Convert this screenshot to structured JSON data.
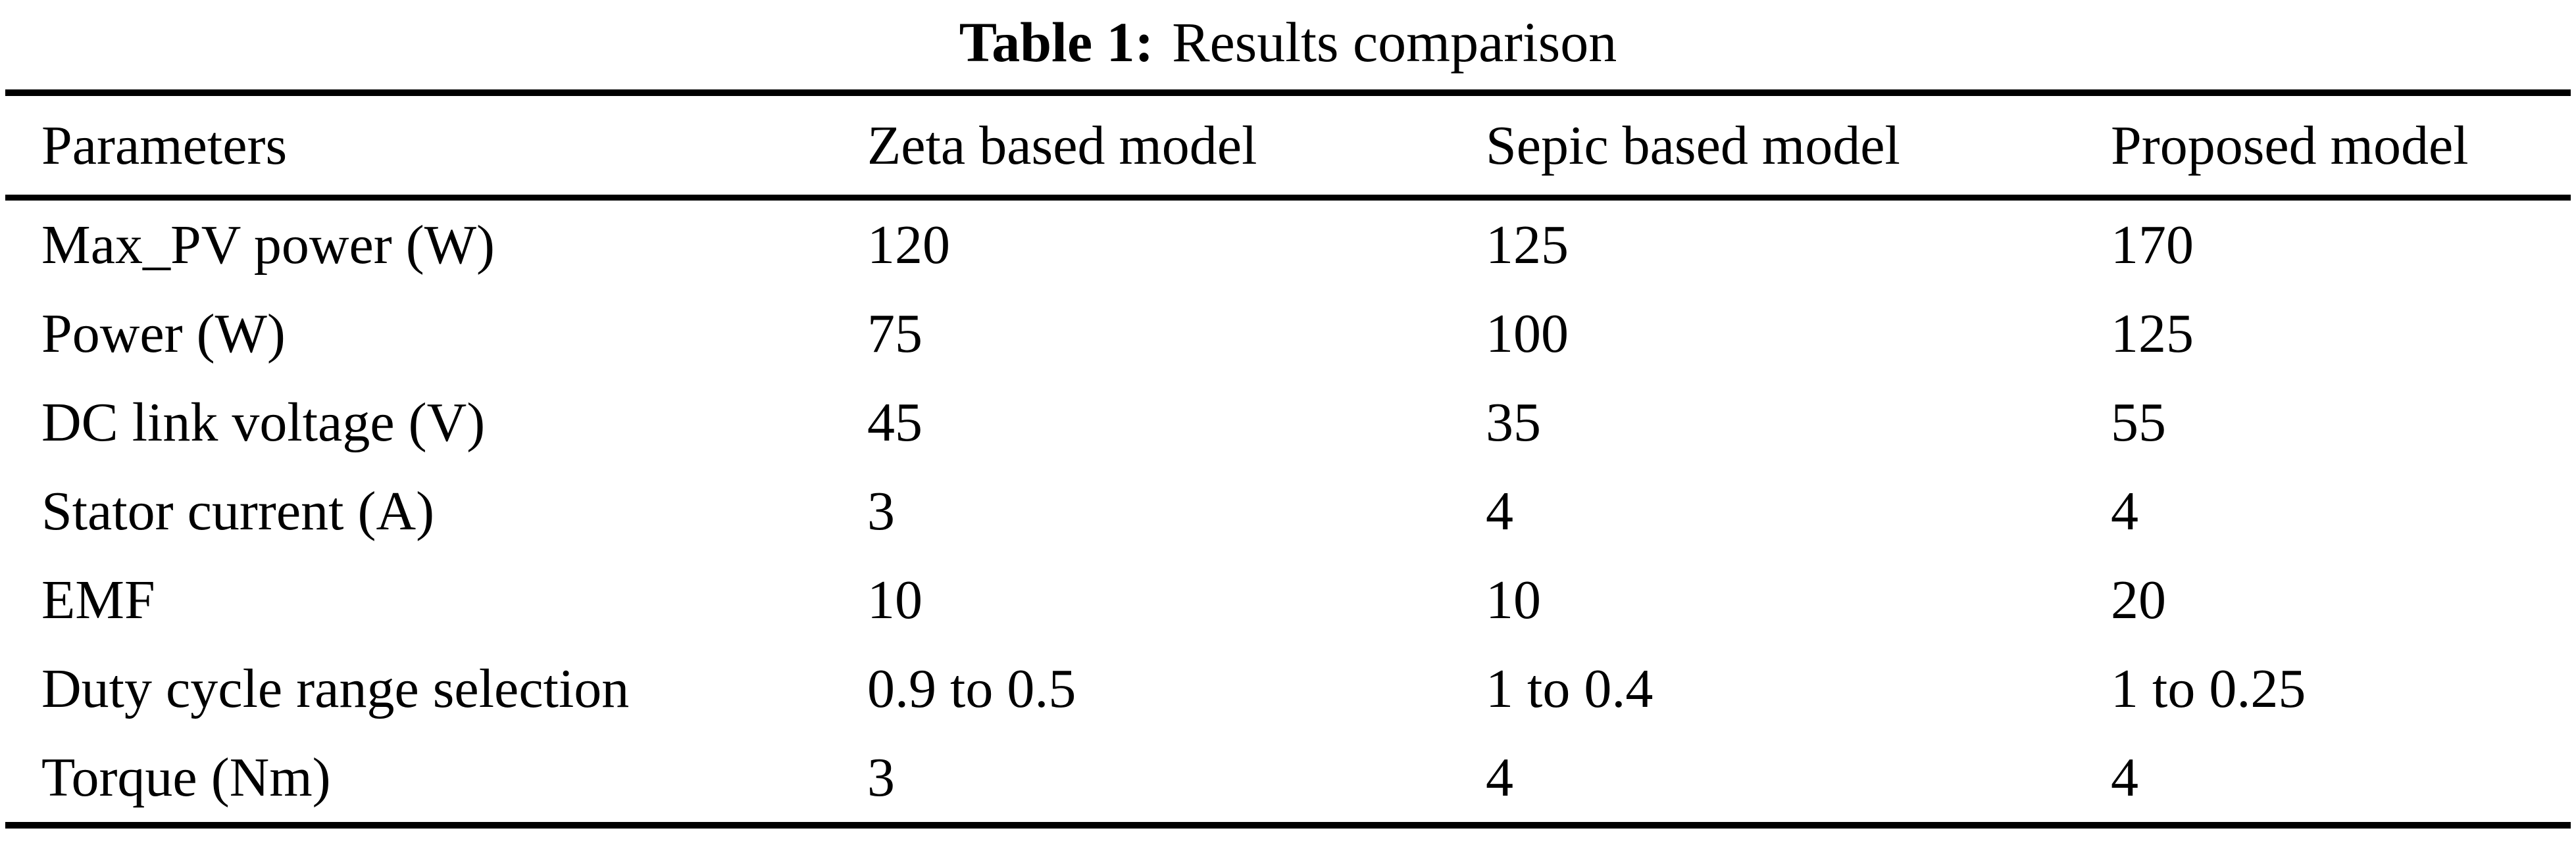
{
  "title": {
    "label": "Table 1:",
    "text": "Results comparison"
  },
  "table": {
    "headers": [
      "Parameters",
      "Zeta based model",
      "Sepic based model",
      "Proposed model"
    ],
    "rows": [
      {
        "parameter": "Max_PV power (W)",
        "zeta": "120",
        "sepic": "125",
        "proposed": "170"
      },
      {
        "parameter": "Power (W)",
        "zeta": "75",
        "sepic": "100",
        "proposed": "125"
      },
      {
        "parameter": "DC link voltage (V)",
        "zeta": "45",
        "sepic": "35",
        "proposed": "55"
      },
      {
        "parameter": "Stator current (A)",
        "zeta": "3",
        "sepic": "4",
        "proposed": "4"
      },
      {
        "parameter": "EMF",
        "zeta": "10",
        "sepic": "10",
        "proposed": "20"
      },
      {
        "parameter": "Duty cycle range selection",
        "zeta": "0.9 to 0.5",
        "sepic": "1 to 0.4",
        "proposed": "1 to 0.25"
      },
      {
        "parameter": "Torque (Nm)",
        "zeta": "3",
        "sepic": "4",
        "proposed": "4"
      }
    ],
    "colors": {
      "text": "#000000",
      "background": "#ffffff",
      "rule": "#000000"
    }
  }
}
